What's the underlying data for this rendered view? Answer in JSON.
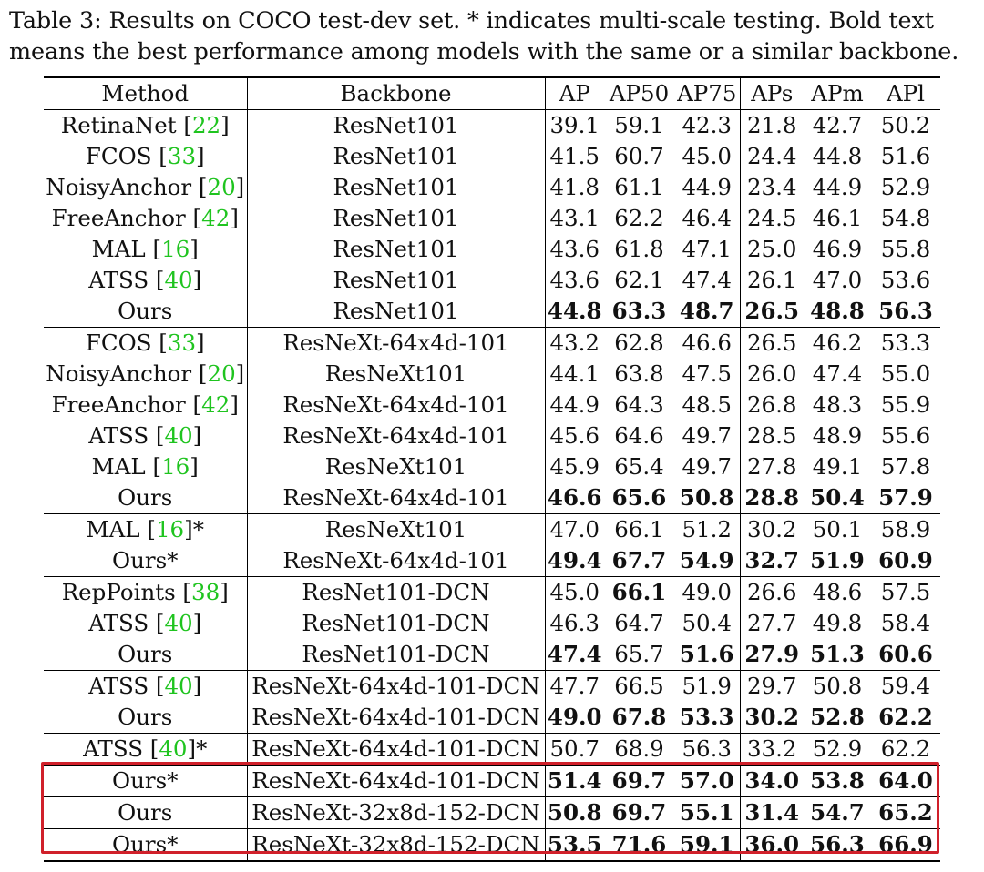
{
  "caption": {
    "line1": "Table 3: Results on COCO test-dev set. * indicates multi-scale testing. Bold text",
    "line2": "means the best performance among models with the same or a similar backbone."
  },
  "headers": [
    "Method",
    "Backbone",
    "AP",
    "AP50",
    "AP75",
    "APs",
    "APm",
    "APl"
  ],
  "rows": [
    {
      "name": "RetinaNet",
      "cite": "22",
      "star": "",
      "backbone": "ResNet101",
      "values": [
        "39.1",
        "59.1",
        "42.3",
        "21.8",
        "42.7",
        "50.2"
      ],
      "bold": [
        false,
        false,
        false,
        false,
        false,
        false
      ],
      "group_start": true
    },
    {
      "name": "FCOS",
      "cite": "33",
      "star": "",
      "backbone": "ResNet101",
      "values": [
        "41.5",
        "60.7",
        "45.0",
        "24.4",
        "44.8",
        "51.6"
      ],
      "bold": [
        false,
        false,
        false,
        false,
        false,
        false
      ]
    },
    {
      "name": "NoisyAnchor",
      "cite": "20",
      "star": "",
      "backbone": "ResNet101",
      "values": [
        "41.8",
        "61.1",
        "44.9",
        "23.4",
        "44.9",
        "52.9"
      ],
      "bold": [
        false,
        false,
        false,
        false,
        false,
        false
      ]
    },
    {
      "name": "FreeAnchor",
      "cite": "42",
      "star": "",
      "backbone": "ResNet101",
      "values": [
        "43.1",
        "62.2",
        "46.4",
        "24.5",
        "46.1",
        "54.8"
      ],
      "bold": [
        false,
        false,
        false,
        false,
        false,
        false
      ]
    },
    {
      "name": "MAL",
      "cite": "16",
      "star": "",
      "backbone": "ResNet101",
      "values": [
        "43.6",
        "61.8",
        "47.1",
        "25.0",
        "46.9",
        "55.8"
      ],
      "bold": [
        false,
        false,
        false,
        false,
        false,
        false
      ]
    },
    {
      "name": "ATSS",
      "cite": "40",
      "star": "",
      "backbone": "ResNet101",
      "values": [
        "43.6",
        "62.1",
        "47.4",
        "26.1",
        "47.0",
        "53.6"
      ],
      "bold": [
        false,
        false,
        false,
        false,
        false,
        false
      ]
    },
    {
      "name": "Ours",
      "cite": "",
      "star": "",
      "backbone": "ResNet101",
      "values": [
        "44.8",
        "63.3",
        "48.7",
        "26.5",
        "48.8",
        "56.3"
      ],
      "bold": [
        true,
        true,
        true,
        true,
        true,
        true
      ]
    },
    {
      "name": "FCOS",
      "cite": "33",
      "star": "",
      "backbone": "ResNeXt-64x4d-101",
      "values": [
        "43.2",
        "62.8",
        "46.6",
        "26.5",
        "46.2",
        "53.3"
      ],
      "bold": [
        false,
        false,
        false,
        false,
        false,
        false
      ],
      "group_start": true
    },
    {
      "name": "NoisyAnchor",
      "cite": "20",
      "star": "",
      "backbone": "ResNeXt101",
      "values": [
        "44.1",
        "63.8",
        "47.5",
        "26.0",
        "47.4",
        "55.0"
      ],
      "bold": [
        false,
        false,
        false,
        false,
        false,
        false
      ]
    },
    {
      "name": "FreeAnchor",
      "cite": "42",
      "star": "",
      "backbone": "ResNeXt-64x4d-101",
      "values": [
        "44.9",
        "64.3",
        "48.5",
        "26.8",
        "48.3",
        "55.9"
      ],
      "bold": [
        false,
        false,
        false,
        false,
        false,
        false
      ]
    },
    {
      "name": "ATSS",
      "cite": "40",
      "star": "",
      "backbone": "ResNeXt-64x4d-101",
      "values": [
        "45.6",
        "64.6",
        "49.7",
        "28.5",
        "48.9",
        "55.6"
      ],
      "bold": [
        false,
        false,
        false,
        false,
        false,
        false
      ]
    },
    {
      "name": "MAL",
      "cite": "16",
      "star": "",
      "backbone": "ResNeXt101",
      "values": [
        "45.9",
        "65.4",
        "49.7",
        "27.8",
        "49.1",
        "57.8"
      ],
      "bold": [
        false,
        false,
        false,
        false,
        false,
        false
      ]
    },
    {
      "name": "Ours",
      "cite": "",
      "star": "",
      "backbone": "ResNeXt-64x4d-101",
      "values": [
        "46.6",
        "65.6",
        "50.8",
        "28.8",
        "50.4",
        "57.9"
      ],
      "bold": [
        true,
        true,
        true,
        true,
        true,
        true
      ]
    },
    {
      "name": "MAL",
      "cite": "16",
      "star": "*",
      "backbone": "ResNeXt101",
      "values": [
        "47.0",
        "66.1",
        "51.2",
        "30.2",
        "50.1",
        "58.9"
      ],
      "bold": [
        false,
        false,
        false,
        false,
        false,
        false
      ],
      "group_start": true
    },
    {
      "name": "Ours",
      "cite": "",
      "star": "*",
      "backbone": "ResNeXt-64x4d-101",
      "values": [
        "49.4",
        "67.7",
        "54.9",
        "32.7",
        "51.9",
        "60.9"
      ],
      "bold": [
        true,
        true,
        true,
        true,
        true,
        true
      ]
    },
    {
      "name": "RepPoints",
      "cite": "38",
      "star": "",
      "backbone": "ResNet101-DCN",
      "values": [
        "45.0",
        "66.1",
        "49.0",
        "26.6",
        "48.6",
        "57.5"
      ],
      "bold": [
        false,
        true,
        false,
        false,
        false,
        false
      ],
      "group_start": true
    },
    {
      "name": "ATSS",
      "cite": "40",
      "star": "",
      "backbone": "ResNet101-DCN",
      "values": [
        "46.3",
        "64.7",
        "50.4",
        "27.7",
        "49.8",
        "58.4"
      ],
      "bold": [
        false,
        false,
        false,
        false,
        false,
        false
      ]
    },
    {
      "name": "Ours",
      "cite": "",
      "star": "",
      "backbone": "ResNet101-DCN",
      "values": [
        "47.4",
        "65.7",
        "51.6",
        "27.9",
        "51.3",
        "60.6"
      ],
      "bold": [
        true,
        false,
        true,
        true,
        true,
        true
      ]
    },
    {
      "name": "ATSS",
      "cite": "40",
      "star": "",
      "backbone": "ResNeXt-64x4d-101-DCN",
      "values": [
        "47.7",
        "66.5",
        "51.9",
        "29.7",
        "50.8",
        "59.4"
      ],
      "bold": [
        false,
        false,
        false,
        false,
        false,
        false
      ],
      "group_start": true
    },
    {
      "name": "Ours",
      "cite": "",
      "star": "",
      "backbone": "ResNeXt-64x4d-101-DCN",
      "values": [
        "49.0",
        "67.8",
        "53.3",
        "30.2",
        "52.8",
        "62.2"
      ],
      "bold": [
        true,
        true,
        true,
        true,
        true,
        true
      ]
    },
    {
      "name": "ATSS",
      "cite": "40",
      "star": "*",
      "backbone": "ResNeXt-64x4d-101-DCN",
      "values": [
        "50.7",
        "68.9",
        "56.3",
        "33.2",
        "52.9",
        "62.2"
      ],
      "bold": [
        false,
        false,
        false,
        false,
        false,
        false
      ],
      "group_start": true
    },
    {
      "name": "Ours",
      "cite": "",
      "star": "*",
      "backbone": "ResNeXt-64x4d-101-DCN",
      "values": [
        "51.4",
        "69.7",
        "57.0",
        "34.0",
        "53.8",
        "64.0"
      ],
      "bold": [
        true,
        true,
        true,
        true,
        true,
        true
      ],
      "group_start": true
    },
    {
      "name": "Ours",
      "cite": "",
      "star": "",
      "backbone": "ResNeXt-32x8d-152-DCN",
      "values": [
        "50.8",
        "69.7",
        "55.1",
        "31.4",
        "54.7",
        "65.2"
      ],
      "bold": [
        true,
        true,
        true,
        true,
        true,
        true
      ],
      "hl_line": true
    },
    {
      "name": "Ours",
      "cite": "",
      "star": "*",
      "backbone": "ResNeXt-32x8d-152-DCN",
      "values": [
        "53.5",
        "71.6",
        "59.1",
        "36.0",
        "56.3",
        "66.9"
      ],
      "bold": [
        true,
        true,
        true,
        true,
        true,
        true
      ],
      "hl_line": true,
      "last": true
    }
  ],
  "highlight_color": "#d0202a",
  "cite_color": "#1fc41f"
}
